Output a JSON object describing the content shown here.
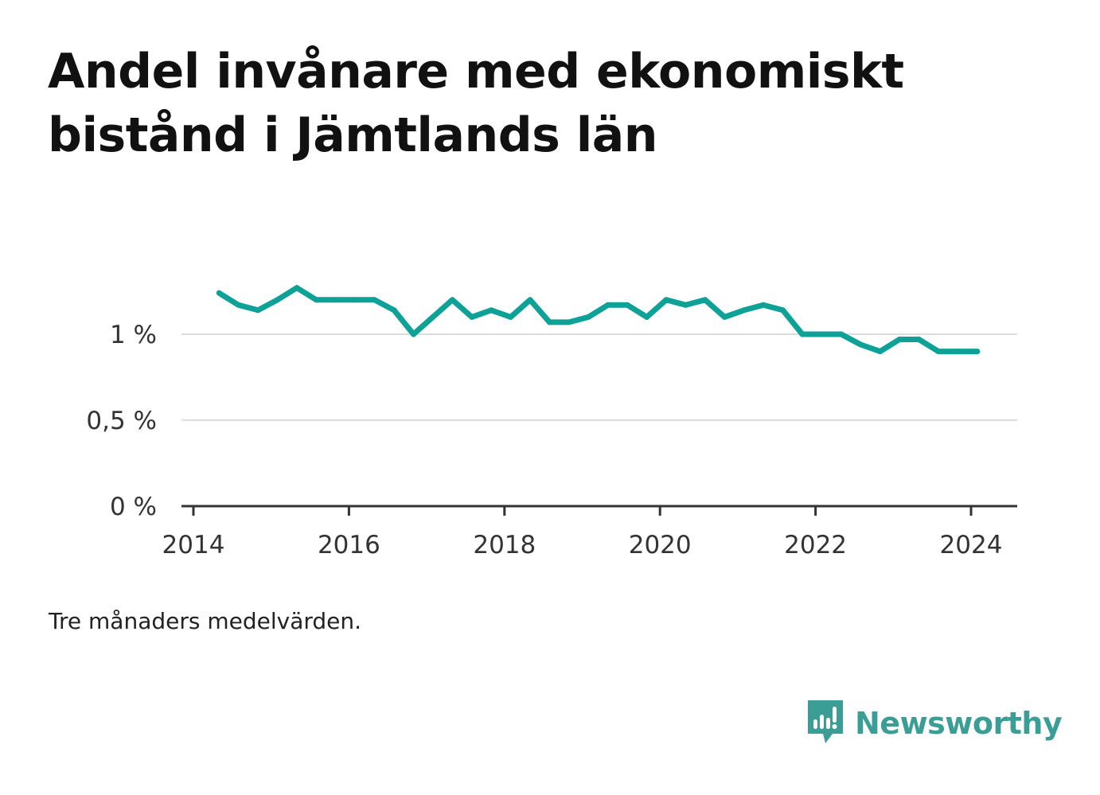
{
  "title": "Andel invånare med ekonomiskt bistånd i Jämtlands län",
  "note": "Tre månaders medelvärden.",
  "brand": {
    "name": "Newsworthy",
    "logo": "newsworthy-logo-icon"
  },
  "colors": {
    "line": "#0ea197",
    "grid": "#dddddd",
    "axis": "#333333",
    "brand": "#3b9e96"
  },
  "chart_data": {
    "type": "line",
    "title": "Andel invånare med ekonomiskt bistånd i Jämtlands län",
    "xlabel": "",
    "ylabel": "",
    "x_ticks": [
      "2014",
      "2016",
      "2018",
      "2020",
      "2022",
      "2024"
    ],
    "y_ticks": [
      "0 %",
      "0,5 %",
      "1 %"
    ],
    "ylim": [
      0,
      1.3
    ],
    "grid": true,
    "x": [
      2014.33,
      2014.58,
      2014.83,
      2015.08,
      2015.33,
      2015.58,
      2015.83,
      2016.08,
      2016.33,
      2016.58,
      2016.83,
      2017.08,
      2017.33,
      2017.58,
      2017.83,
      2018.08,
      2018.33,
      2018.58,
      2018.83,
      2019.08,
      2019.33,
      2019.58,
      2019.83,
      2020.08,
      2020.33,
      2020.58,
      2020.83,
      2021.08,
      2021.33,
      2021.58,
      2021.83,
      2022.08,
      2022.33,
      2022.58,
      2022.83,
      2023.08,
      2023.33,
      2023.58,
      2023.83,
      2024.08
    ],
    "values": [
      1.24,
      1.17,
      1.14,
      1.2,
      1.27,
      1.2,
      1.2,
      1.2,
      1.2,
      1.14,
      1.0,
      1.1,
      1.2,
      1.1,
      1.14,
      1.1,
      1.2,
      1.07,
      1.07,
      1.1,
      1.17,
      1.17,
      1.1,
      1.2,
      1.17,
      1.2,
      1.1,
      1.14,
      1.17,
      1.14,
      1.0,
      1.0,
      1.0,
      0.94,
      0.9,
      0.97,
      0.97,
      0.9,
      0.9,
      0.9
    ]
  }
}
